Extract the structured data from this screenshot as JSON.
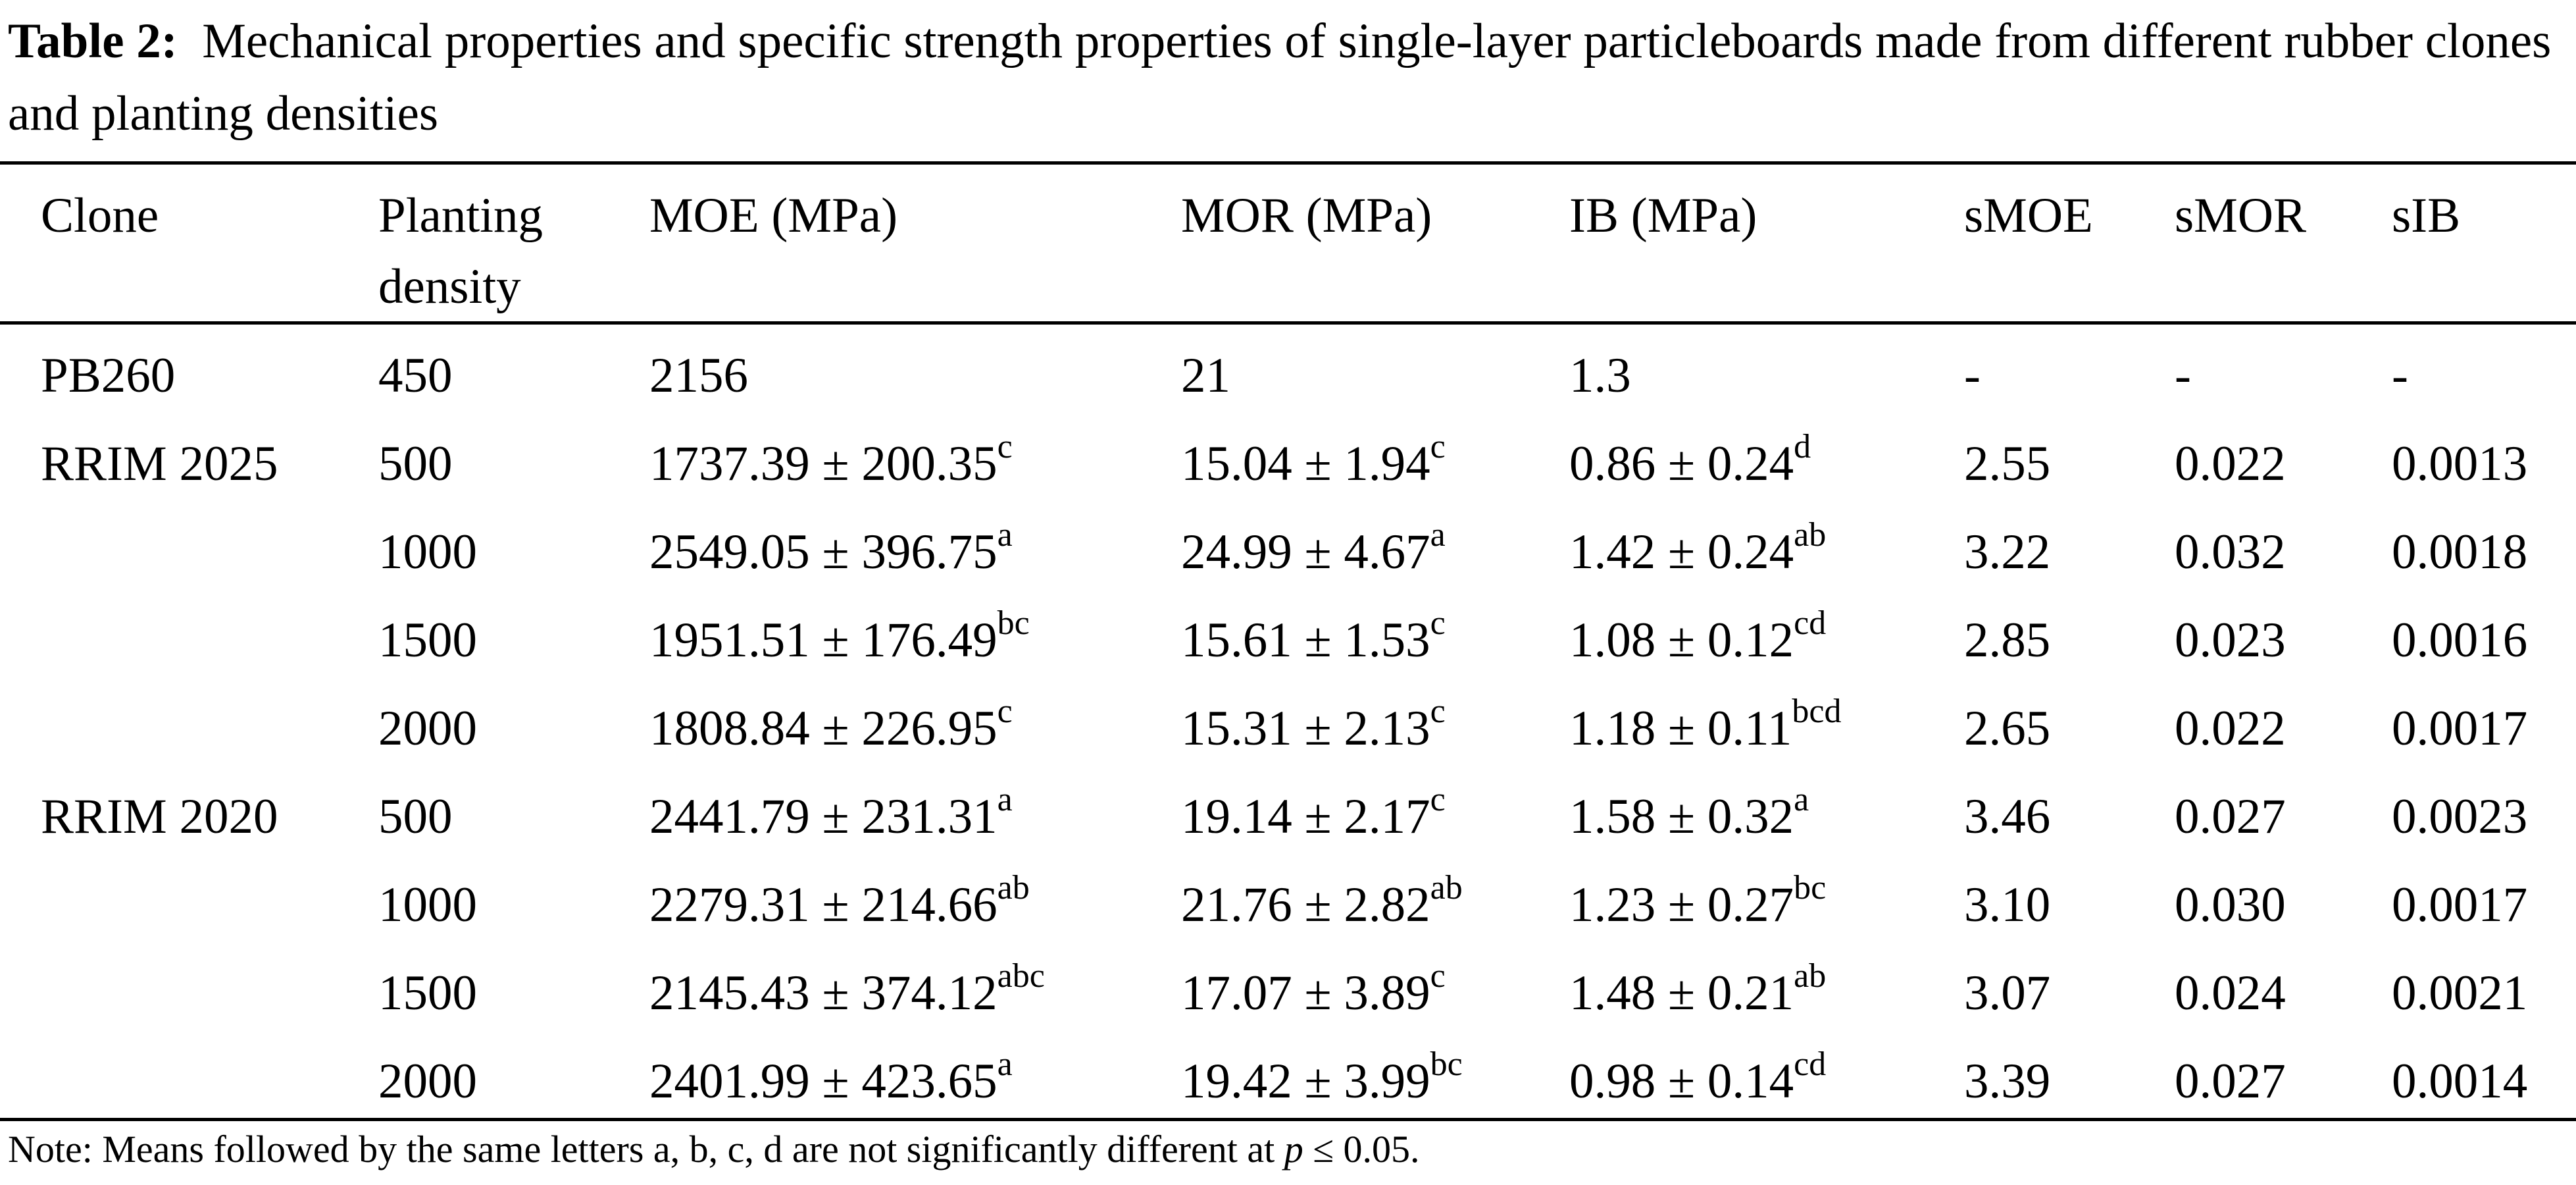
{
  "caption": {
    "label": "Table 2:",
    "text": "Mechanical properties and specific strength properties of single-layer particleboards made from different rubber clones and planting densities"
  },
  "columns": [
    "Clone",
    "Planting density",
    "MOE (MPa)",
    "MOR (MPa)",
    "IB (MPa)",
    "sMOE",
    "sMOR",
    "sIB"
  ],
  "rows": [
    {
      "clone": "PB260",
      "density": "450",
      "moe": "2156",
      "moe_sup": "",
      "mor": "21",
      "mor_sup": "",
      "ib": "1.3",
      "ib_sup": "",
      "smoe": "-",
      "smor": "-",
      "sib": "-"
    },
    {
      "clone": "RRIM 2025",
      "density": "500",
      "moe": "1737.39 ± 200.35",
      "moe_sup": "c",
      "mor": "15.04 ± 1.94",
      "mor_sup": "c",
      "ib": "0.86 ± 0.24",
      "ib_sup": "d",
      "smoe": "2.55",
      "smor": "0.022",
      "sib": "0.0013"
    },
    {
      "clone": "",
      "density": "1000",
      "moe": "2549.05 ± 396.75",
      "moe_sup": "a",
      "mor": "24.99 ± 4.67",
      "mor_sup": "a",
      "ib": "1.42 ± 0.24",
      "ib_sup": "ab",
      "smoe": "3.22",
      "smor": "0.032",
      "sib": "0.0018"
    },
    {
      "clone": "",
      "density": "1500",
      "moe": "1951.51 ± 176.49",
      "moe_sup": "bc",
      "mor": "15.61 ± 1.53",
      "mor_sup": "c",
      "ib": "1.08 ± 0.12",
      "ib_sup": "cd",
      "smoe": "2.85",
      "smor": "0.023",
      "sib": "0.0016"
    },
    {
      "clone": "",
      "density": "2000",
      "moe": "1808.84 ± 226.95",
      "moe_sup": "c",
      "mor": "15.31 ± 2.13",
      "mor_sup": "c",
      "ib": "1.18 ± 0.11",
      "ib_sup": "bcd",
      "smoe": "2.65",
      "smor": "0.022",
      "sib": "0.0017"
    },
    {
      "clone": "RRIM 2020",
      "density": "500",
      "moe": "2441.79 ± 231.31",
      "moe_sup": "a",
      "mor": "19.14 ± 2.17",
      "mor_sup": "c",
      "ib": "1.58 ± 0.32",
      "ib_sup": "a",
      "smoe": "3.46",
      "smor": "0.027",
      "sib": "0.0023"
    },
    {
      "clone": "",
      "density": "1000",
      "moe": "2279.31 ± 214.66",
      "moe_sup": "ab",
      "mor": "21.76 ± 2.82",
      "mor_sup": "ab",
      "ib": "1.23 ± 0.27",
      "ib_sup": "bc",
      "smoe": "3.10",
      "smor": "0.030",
      "sib": "0.0017"
    },
    {
      "clone": "",
      "density": "1500",
      "moe": "2145.43 ± 374.12",
      "moe_sup": "abc",
      "mor": "17.07 ± 3.89",
      "mor_sup": "c",
      "ib": "1.48 ± 0.21",
      "ib_sup": "ab",
      "smoe": "3.07",
      "smor": "0.024",
      "sib": "0.0021"
    },
    {
      "clone": "",
      "density": "2000",
      "moe": "2401.99 ± 423.65",
      "moe_sup": "a",
      "mor": "19.42 ± 3.99",
      "mor_sup": "bc",
      "ib": "0.98 ± 0.14",
      "ib_sup": "cd",
      "smoe": "3.39",
      "smor": "0.027",
      "sib": "0.0014"
    }
  ],
  "note": {
    "prefix": "Note: Means followed by the same letters a, b, c, d are not significantly different at ",
    "var": "p",
    "suffix": " ≤ 0.05."
  }
}
